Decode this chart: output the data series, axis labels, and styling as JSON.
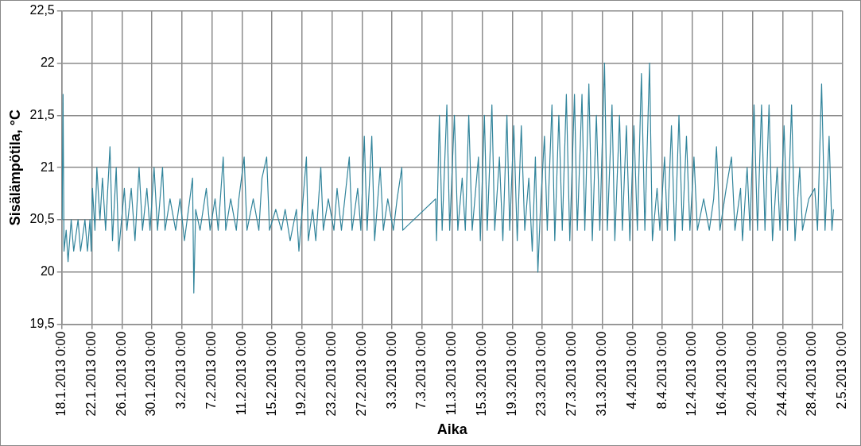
{
  "chart_data": {
    "type": "line",
    "xlabel": "Aika",
    "ylabel": "Sisälämpötila, °C",
    "grid": true,
    "legend": false,
    "marker": "none",
    "line_style": "solid",
    "xlim": [
      "2013-01-18",
      "2013-05-02"
    ],
    "xticks": [
      {
        "value": "2013-01-18",
        "label": "18.1.2013 0:00"
      },
      {
        "value": "2013-01-22",
        "label": "22.1.2013 0:00"
      },
      {
        "value": "2013-01-26",
        "label": "26.1.2013 0:00"
      },
      {
        "value": "2013-01-30",
        "label": "30.1.2013 0:00"
      },
      {
        "value": "2013-02-03",
        "label": "3.2.2013 0:00"
      },
      {
        "value": "2013-02-07",
        "label": "7.2.2013 0:00"
      },
      {
        "value": "2013-02-11",
        "label": "11.2.2013 0:00"
      },
      {
        "value": "2013-02-15",
        "label": "15.2.2013 0:00"
      },
      {
        "value": "2013-02-19",
        "label": "19.2.2013 0:00"
      },
      {
        "value": "2013-02-23",
        "label": "23.2.2013 0:00"
      },
      {
        "value": "2013-02-27",
        "label": "27.2.2013 0:00"
      },
      {
        "value": "2013-03-03",
        "label": "3.3.2013 0:00"
      },
      {
        "value": "2013-03-07",
        "label": "7.3.2013 0:00"
      },
      {
        "value": "2013-03-11",
        "label": "11.3.2013 0:00"
      },
      {
        "value": "2013-03-15",
        "label": "15.3.2013 0:00"
      },
      {
        "value": "2013-03-19",
        "label": "19.3.2013 0:00"
      },
      {
        "value": "2013-03-23",
        "label": "23.3.2013 0:00"
      },
      {
        "value": "2013-03-27",
        "label": "27.3.2013 0:00"
      },
      {
        "value": "2013-03-31",
        "label": "31.3.2013 0:00"
      },
      {
        "value": "2013-04-04",
        "label": "4.4.2013 0:00"
      },
      {
        "value": "2013-04-08",
        "label": "8.4.2013 0:00"
      },
      {
        "value": "2013-04-12",
        "label": "12.4.2013 0:00"
      },
      {
        "value": "2013-04-16",
        "label": "16.4.2013 0:00"
      },
      {
        "value": "2013-04-20",
        "label": "20.4.2013 0:00"
      },
      {
        "value": "2013-04-24",
        "label": "24.4.2013 0:00"
      },
      {
        "value": "2013-04-28",
        "label": "28.4.2013 0:00"
      },
      {
        "value": "2013-05-02",
        "label": "2.5.2013 0:00"
      }
    ],
    "ylim": [
      19.5,
      22.5
    ],
    "yticks": [
      {
        "value": 19.5,
        "label": "19,5"
      },
      20,
      {
        "value": 20.5,
        "label": "20,5"
      },
      21,
      {
        "value": 21.5,
        "label": "21,5"
      },
      22,
      {
        "value": 22.5,
        "label": "22,5"
      }
    ],
    "series": [
      {
        "color": "#31849b",
        "x": [
          "2013-01-18T01:00",
          "2013-01-18T04:00",
          "2013-01-18T07:00",
          "2013-01-18T14:00",
          "2013-01-18T20:00",
          "2013-01-19T06:00",
          "2013-01-19T14:00",
          "2013-01-20T04:00",
          "2013-01-20T12:00",
          "2013-01-21T02:00",
          "2013-01-21T10:00",
          "2013-01-21T18:00",
          "2013-01-21T22:00",
          "2013-01-22T02:00",
          "2013-01-22T10:00",
          "2013-01-22T16:00",
          "2013-01-23T02:00",
          "2013-01-23T10:00",
          "2013-01-23T20:00",
          "2013-01-24T10:00",
          "2013-01-24T18:00",
          "2013-01-25T06:00",
          "2013-01-25T14:00",
          "2013-01-26T08:00",
          "2013-01-26T16:00",
          "2013-01-27T06:00",
          "2013-01-27T18:00",
          "2013-01-28T07:00",
          "2013-01-28T18:00",
          "2013-01-29T08:00",
          "2013-01-29T18:00",
          "2013-01-30T07:00",
          "2013-01-30T18:00",
          "2013-01-31T10:00",
          "2013-01-31T18:00",
          "2013-02-01T10:00",
          "2013-02-02T04:00",
          "2013-02-02T18:00",
          "2013-02-03T08:00",
          "2013-02-04T10:00",
          "2013-02-04T14:00",
          "2013-02-04T20:00",
          "2013-02-05T10:00",
          "2013-02-06T06:00",
          "2013-02-06T18:00",
          "2013-02-07T10:00",
          "2013-02-07T20:00",
          "2013-02-08T12:00",
          "2013-02-08T20:00",
          "2013-02-09T12:00",
          "2013-02-10T06:00",
          "2013-02-10T14:00",
          "2013-02-11T07:00",
          "2013-02-11T16:00",
          "2013-02-12T12:00",
          "2013-02-13T06:00",
          "2013-02-13T16:00",
          "2013-02-14T07:00",
          "2013-02-14T16:00",
          "2013-02-15T12:00",
          "2013-02-16T06:00",
          "2013-02-16T18:00",
          "2013-02-17T10:00",
          "2013-02-18T06:00",
          "2013-02-18T14:00",
          "2013-02-19T14:00",
          "2013-02-19T20:00",
          "2013-02-20T10:00",
          "2013-02-20T20:00",
          "2013-02-21T12:00",
          "2013-02-21T20:00",
          "2013-02-22T12:00",
          "2013-02-23T06:00",
          "2013-02-23T16:00",
          "2013-02-24T06:00",
          "2013-02-25T07:00",
          "2013-02-25T16:00",
          "2013-02-26T10:00",
          "2013-02-26T20:00",
          "2013-02-27T07:00",
          "2013-02-27T16:00",
          "2013-02-28T07:00",
          "2013-02-28T16:00",
          "2013-03-01T10:00",
          "2013-03-01T20:00",
          "2013-03-02T10:00",
          "2013-03-03T04:00",
          "2013-03-03T16:00",
          "2013-03-04T07:00",
          "2013-03-04T10:00",
          "2013-03-08T19:00",
          "2013-03-08T22:00",
          "2013-03-09T07:00",
          "2013-03-09T16:00",
          "2013-03-10T07:00",
          "2013-03-10T16:00",
          "2013-03-11T07:00",
          "2013-03-11T18:00",
          "2013-03-12T08:00",
          "2013-03-12T18:00",
          "2013-03-13T05:00",
          "2013-03-13T16:00",
          "2013-03-14T12:00",
          "2013-03-14T18:00",
          "2013-03-15T07:00",
          "2013-03-15T16:00",
          "2013-03-16T07:00",
          "2013-03-16T16:00",
          "2013-03-17T07:00",
          "2013-03-17T18:00",
          "2013-03-18T07:00",
          "2013-03-18T16:00",
          "2013-03-19T05:00",
          "2013-03-19T16:00",
          "2013-03-20T05:00",
          "2013-03-20T16:00",
          "2013-03-21T05:00",
          "2013-03-21T16:00",
          "2013-03-22T02:00",
          "2013-03-22T10:00",
          "2013-03-22T18:00",
          "2013-03-23T07:00",
          "2013-03-23T16:00",
          "2013-03-24T07:00",
          "2013-03-24T16:00",
          "2013-03-25T05:00",
          "2013-03-25T16:00",
          "2013-03-26T05:00",
          "2013-03-26T16:00",
          "2013-03-27T07:00",
          "2013-03-27T16:00",
          "2013-03-28T07:00",
          "2013-03-28T16:00",
          "2013-03-29T05:00",
          "2013-03-29T16:00",
          "2013-03-30T05:00",
          "2013-03-30T16:00",
          "2013-03-31T07:00",
          "2013-03-31T16:00",
          "2013-04-01T07:00",
          "2013-04-01T16:00",
          "2013-04-02T07:00",
          "2013-04-02T16:00",
          "2013-04-03T05:00",
          "2013-04-03T16:00",
          "2013-04-04T05:00",
          "2013-04-04T16:00",
          "2013-04-05T05:00",
          "2013-04-05T16:00",
          "2013-04-06T07:00",
          "2013-04-06T16:00",
          "2013-04-07T07:00",
          "2013-04-07T16:00",
          "2013-04-08T07:00",
          "2013-04-08T16:00",
          "2013-04-09T05:00",
          "2013-04-09T16:00",
          "2013-04-10T05:00",
          "2013-04-10T16:00",
          "2013-04-11T05:00",
          "2013-04-11T16:00",
          "2013-04-12T05:00",
          "2013-04-12T16:00",
          "2013-04-13T12:00",
          "2013-04-14T06:00",
          "2013-04-14T20:00",
          "2013-04-15T05:00",
          "2013-04-15T16:00",
          "2013-04-16T12:00",
          "2013-04-17T05:00",
          "2013-04-17T16:00",
          "2013-04-18T10:00",
          "2013-04-18T16:00",
          "2013-04-19T07:00",
          "2013-04-19T16:00",
          "2013-04-20T05:00",
          "2013-04-20T16:00",
          "2013-04-21T05:00",
          "2013-04-21T16:00",
          "2013-04-22T05:00",
          "2013-04-22T16:00",
          "2013-04-23T07:00",
          "2013-04-23T16:00",
          "2013-04-24T05:00",
          "2013-04-24T16:00",
          "2013-04-25T05:00",
          "2013-04-25T16:00",
          "2013-04-26T07:00",
          "2013-04-26T16:00",
          "2013-04-27T12:00",
          "2013-04-28T07:00",
          "2013-04-28T16:00",
          "2013-04-29T05:00",
          "2013-04-29T16:00",
          "2013-04-30T05:00",
          "2013-04-30T14:00",
          "2013-04-30T19:00"
        ],
        "values": [
          20.5,
          21.7,
          20.2,
          20.4,
          20.1,
          20.5,
          20.2,
          20.5,
          20.2,
          20.5,
          20.2,
          20.5,
          20.2,
          20.8,
          20.4,
          21.0,
          20.5,
          20.9,
          20.4,
          21.2,
          20.3,
          21.0,
          20.2,
          20.8,
          20.4,
          20.8,
          20.3,
          21.0,
          20.4,
          20.8,
          20.4,
          21.0,
          20.4,
          21.0,
          20.4,
          20.7,
          20.4,
          20.7,
          20.3,
          20.9,
          19.8,
          20.6,
          20.4,
          20.8,
          20.4,
          20.7,
          20.4,
          21.1,
          20.4,
          20.7,
          20.4,
          20.7,
          21.1,
          20.4,
          20.7,
          20.4,
          20.9,
          21.1,
          20.4,
          20.6,
          20.4,
          20.6,
          20.3,
          20.6,
          20.2,
          21.1,
          20.3,
          20.6,
          20.3,
          21.0,
          20.4,
          20.7,
          20.4,
          20.8,
          20.4,
          21.1,
          20.4,
          20.8,
          20.4,
          21.3,
          20.4,
          21.3,
          20.3,
          21.0,
          20.4,
          20.7,
          20.4,
          20.7,
          21.0,
          20.4,
          20.7,
          20.3,
          21.5,
          20.4,
          21.6,
          20.4,
          21.5,
          20.4,
          20.9,
          20.4,
          21.5,
          20.4,
          21.1,
          20.3,
          21.5,
          20.4,
          21.6,
          20.4,
          21.1,
          20.3,
          21.5,
          20.4,
          21.4,
          20.3,
          21.4,
          20.4,
          20.9,
          20.2,
          21.1,
          20.0,
          20.6,
          21.3,
          20.4,
          21.6,
          20.3,
          21.5,
          20.4,
          21.7,
          20.3,
          21.7,
          20.4,
          21.7,
          20.4,
          21.8,
          20.3,
          21.5,
          20.4,
          22.0,
          20.4,
          21.6,
          20.3,
          21.5,
          20.4,
          21.4,
          20.3,
          21.4,
          20.4,
          21.9,
          20.4,
          22.0,
          20.3,
          20.8,
          20.4,
          21.1,
          20.4,
          21.4,
          20.3,
          21.5,
          20.4,
          21.3,
          20.4,
          21.1,
          20.4,
          20.7,
          20.4,
          20.7,
          21.2,
          20.4,
          20.8,
          21.1,
          20.4,
          20.8,
          20.3,
          21.0,
          20.4,
          21.6,
          20.4,
          21.6,
          20.4,
          21.6,
          20.3,
          21.0,
          20.4,
          21.4,
          20.4,
          21.6,
          20.3,
          21.0,
          20.4,
          20.7,
          20.8,
          20.4,
          21.8,
          20.4,
          21.3,
          20.4,
          20.6
        ]
      }
    ]
  }
}
